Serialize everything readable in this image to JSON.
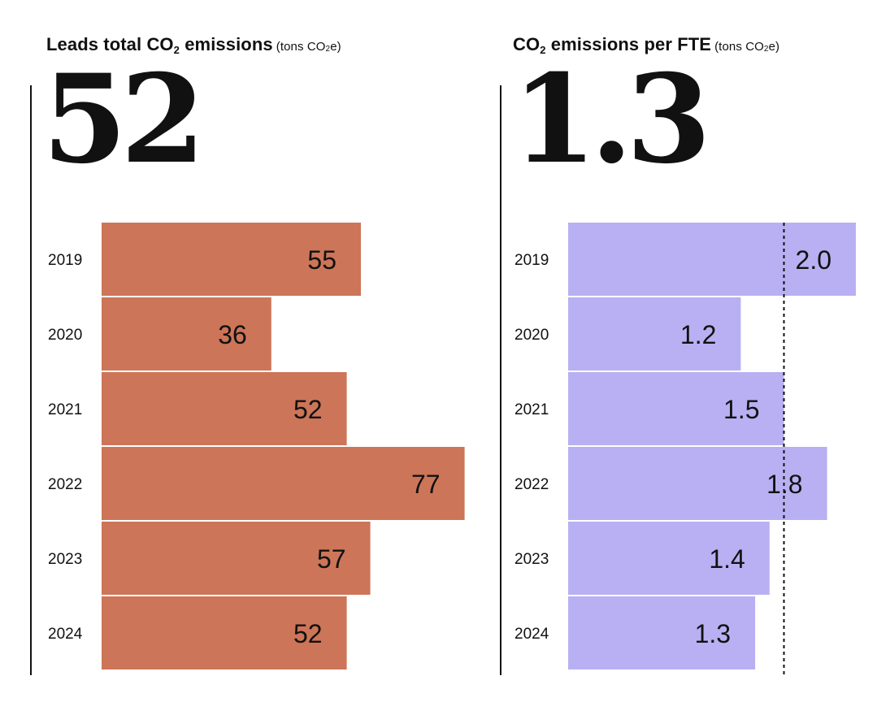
{
  "left": {
    "title_main": "Leads total CO",
    "title_sub": "2",
    "title_rest": " emissions",
    "unit_prefix": "(tons CO",
    "unit_sub": "2",
    "unit_suffix": "e)",
    "headline": "52"
  },
  "right": {
    "title_main": "CO",
    "title_sub": "2",
    "title_rest": " emissions per FTE",
    "unit_prefix": "(tons CO",
    "unit_sub": "2",
    "unit_suffix": "e)",
    "headline": "1.3"
  },
  "chart_data": [
    {
      "type": "bar",
      "orientation": "horizontal",
      "title": "Leads total CO2 emissions (tons CO2e)",
      "categories": [
        "2019",
        "2020",
        "2021",
        "2022",
        "2023",
        "2024"
      ],
      "values": [
        55,
        36,
        52,
        77,
        57,
        52
      ],
      "labels": [
        "55",
        "36",
        "52",
        "77",
        "57",
        "52"
      ],
      "xlim": [
        0,
        80
      ],
      "color": "#cd7558",
      "grid": false
    },
    {
      "type": "bar",
      "orientation": "horizontal",
      "title": "CO2 emissions per FTE (tons CO2e)",
      "categories": [
        "2019",
        "2020",
        "2021",
        "2022",
        "2023",
        "2024"
      ],
      "values": [
        2.0,
        1.2,
        1.5,
        1.8,
        1.4,
        1.3
      ],
      "labels": [
        "2.0",
        "1.2",
        "1.5",
        "1.8",
        "1.4",
        "1.3"
      ],
      "xlim": [
        0,
        2.0
      ],
      "reference_line": 1.5,
      "reference_style": "dashed",
      "color": "#b8b0f2",
      "grid": false
    }
  ]
}
